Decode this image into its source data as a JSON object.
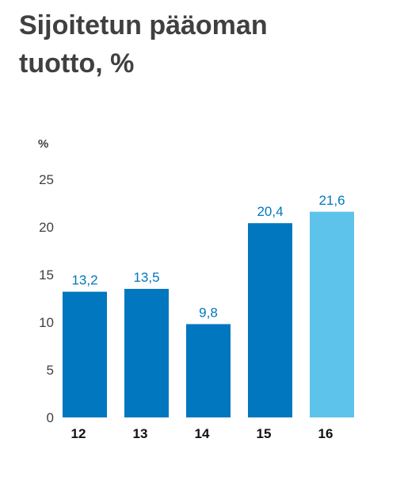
{
  "chart_data": {
    "type": "bar",
    "title_lines": [
      "Sijoitetun pääoman",
      "tuotto, %"
    ],
    "ylabel": "%",
    "xlabel": "",
    "categories": [
      "12",
      "13",
      "14",
      "15",
      "16"
    ],
    "values": [
      13.2,
      13.5,
      9.8,
      20.4,
      21.6
    ],
    "value_labels": [
      "13,2",
      "13,5",
      "9,8",
      "20,4",
      "21,6"
    ],
    "yticks": [
      "0",
      "5",
      "10",
      "15",
      "20",
      "25"
    ],
    "ylim": [
      0,
      25
    ],
    "grid": false,
    "colors": {
      "bar": "#0077bf",
      "bar_highlight": "#5ec3ea",
      "value_label": "#0077bf"
    },
    "highlight_index": 4
  }
}
